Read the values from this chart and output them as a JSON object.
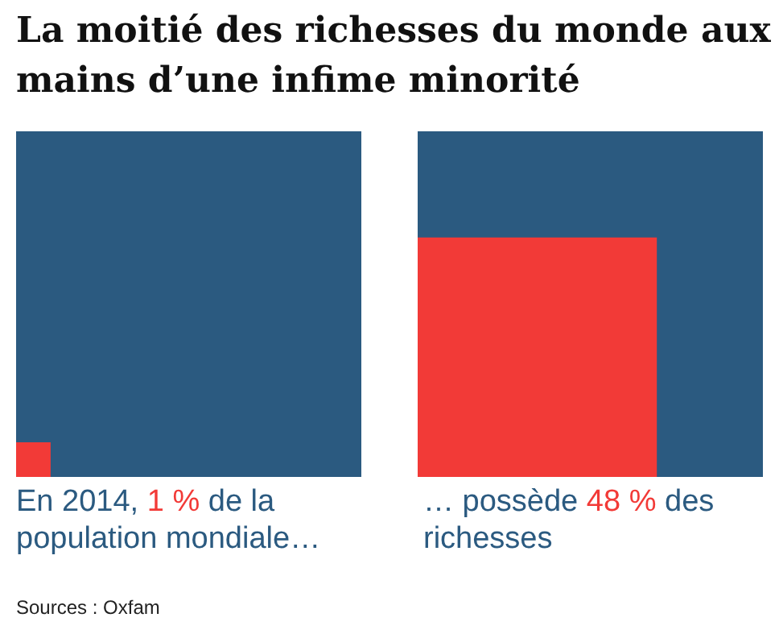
{
  "chart_data": {
    "type": "other",
    "title": "La moitié des richesses du monde aux mains d’une infime minorité",
    "categories": [
      null,
      null
    ],
    "values": [
      1,
      48
    ],
    "value_labels": [
      "1 %",
      "48 %"
    ],
    "colors": [
      "#f23a37",
      "#f23a37"
    ],
    "annotations": [
      "En 2014,",
      "de la population mondiale…",
      "… possède",
      "des richesses",
      "Sources : Oxfam"
    ]
  }
}
